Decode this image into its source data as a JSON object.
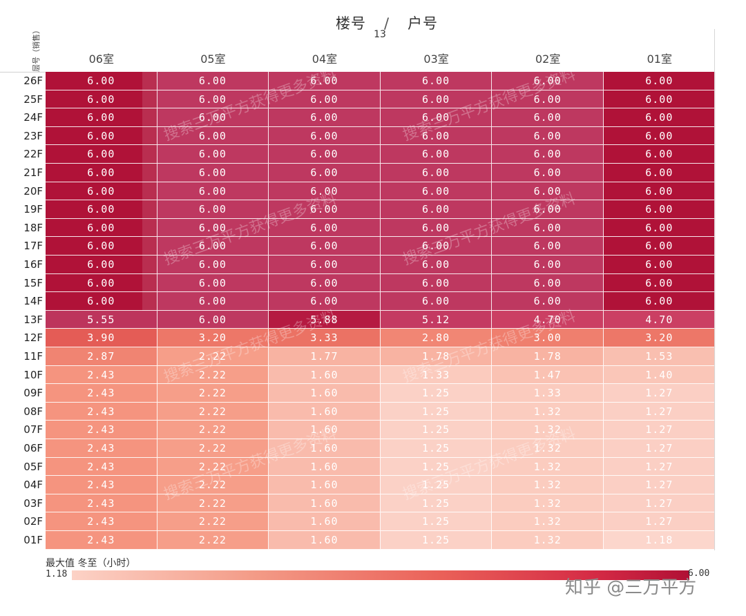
{
  "header": {
    "title_left": "楼号",
    "title_sep": "/",
    "title_right": "户号",
    "building": "13"
  },
  "row_header_label": "层号（销售）",
  "legend": {
    "title": "最大值 冬至（小时）",
    "min_label": "1.18",
    "max_label": "6.00"
  },
  "credit": "知乎 @三万平方",
  "watermark": "搜索三万平方获得更多资料",
  "colors": {
    "max": "#b01035",
    "high": "#c2375f",
    "mid": "#ea6058",
    "low": "#fcd2c6",
    "background": "#ffffff"
  },
  "chart_data": {
    "type": "heatmap",
    "title": "楼号 / 户号",
    "subtitle": "13",
    "xlabel": "户号",
    "ylabel": "层号（销售）",
    "units": [
      "06室",
      "05室",
      "04室",
      "03室",
      "02室",
      "01室"
    ],
    "floors": [
      "26F",
      "25F",
      "24F",
      "23F",
      "22F",
      "21F",
      "20F",
      "19F",
      "18F",
      "17F",
      "16F",
      "15F",
      "14F",
      "13F",
      "12F",
      "11F",
      "10F",
      "09F",
      "08F",
      "07F",
      "06F",
      "05F",
      "04F",
      "03F",
      "02F",
      "01F"
    ],
    "values": [
      [
        "6.00",
        "6.00",
        "6.00",
        "6.00",
        "6.00",
        "6.00"
      ],
      [
        "6.00",
        "6.00",
        "6.00",
        "6.00",
        "6.00",
        "6.00"
      ],
      [
        "6.00",
        "6.00",
        "6.00",
        "6.00",
        "6.00",
        "6.00"
      ],
      [
        "6.00",
        "6.00",
        "6.00",
        "6.00",
        "6.00",
        "6.00"
      ],
      [
        "6.00",
        "6.00",
        "6.00",
        "6.00",
        "6.00",
        "6.00"
      ],
      [
        "6.00",
        "6.00",
        "6.00",
        "6.00",
        "6.00",
        "6.00"
      ],
      [
        "6.00",
        "6.00",
        "6.00",
        "6.00",
        "6.00",
        "6.00"
      ],
      [
        "6.00",
        "6.00",
        "6.00",
        "6.00",
        "6.00",
        "6.00"
      ],
      [
        "6.00",
        "6.00",
        "6.00",
        "6.00",
        "6.00",
        "6.00"
      ],
      [
        "6.00",
        "6.00",
        "6.00",
        "6.00",
        "6.00",
        "6.00"
      ],
      [
        "6.00",
        "6.00",
        "6.00",
        "6.00",
        "6.00",
        "6.00"
      ],
      [
        "6.00",
        "6.00",
        "6.00",
        "6.00",
        "6.00",
        "6.00"
      ],
      [
        "6.00",
        "6.00",
        "6.00",
        "6.00",
        "6.00",
        "6.00"
      ],
      [
        "5.55",
        "6.00",
        "5.88",
        "5.12",
        "4.70",
        "4.70"
      ],
      [
        "3.90",
        "3.20",
        "3.33",
        "2.80",
        "3.00",
        "3.20"
      ],
      [
        "2.87",
        "2.22",
        "1.77",
        "1.78",
        "1.78",
        "1.53"
      ],
      [
        "2.43",
        "2.22",
        "1.60",
        "1.33",
        "1.47",
        "1.40"
      ],
      [
        "2.43",
        "2.22",
        "1.60",
        "1.25",
        "1.33",
        "1.27"
      ],
      [
        "2.43",
        "2.22",
        "1.60",
        "1.25",
        "1.32",
        "1.27"
      ],
      [
        "2.43",
        "2.22",
        "1.60",
        "1.25",
        "1.32",
        "1.27"
      ],
      [
        "2.43",
        "2.22",
        "1.60",
        "1.25",
        "1.32",
        "1.27"
      ],
      [
        "2.43",
        "2.22",
        "1.60",
        "1.25",
        "1.32",
        "1.27"
      ],
      [
        "2.43",
        "2.22",
        "1.60",
        "1.25",
        "1.32",
        "1.27"
      ],
      [
        "2.43",
        "2.22",
        "1.60",
        "1.25",
        "1.32",
        "1.27"
      ],
      [
        "2.43",
        "2.22",
        "1.60",
        "1.25",
        "1.32",
        "1.27"
      ],
      [
        "2.43",
        "2.22",
        "1.60",
        "1.25",
        "1.32",
        "1.18"
      ]
    ],
    "color_range": [
      1.18,
      6.0
    ],
    "legend_title": "最大值 冬至（小时）"
  }
}
